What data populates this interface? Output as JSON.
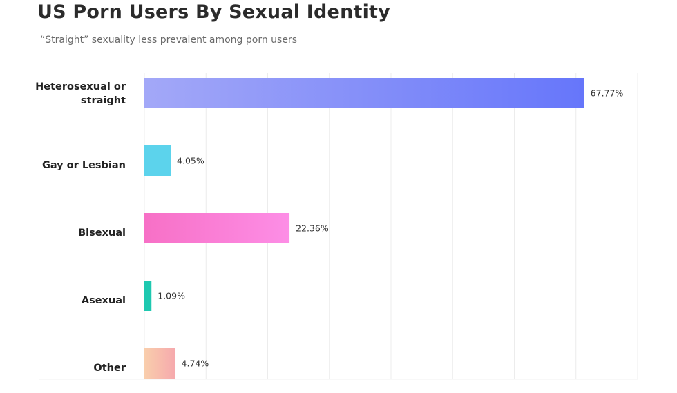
{
  "chart_data": {
    "type": "bar",
    "orientation": "horizontal",
    "title": "US Porn Users By Sexual Identity",
    "subtitle": "“Straight” sexuality less prevalent among porn users",
    "categories": [
      [
        "Heterosexual or",
        "straight"
      ],
      [
        "Gay or Lesbian"
      ],
      [
        "Bisexual"
      ],
      [
        "Asexual"
      ],
      [
        "Other"
      ]
    ],
    "values": [
      67.77,
      4.05,
      22.36,
      1.09,
      4.74
    ],
    "value_labels": [
      "67.77%",
      "4.05%",
      "22.36%",
      "1.09%",
      "4.74%"
    ],
    "xlim": [
      0,
      76
    ],
    "grid": true,
    "legend": "none",
    "colors": [
      [
        "#a3a8f8",
        "#6676fa"
      ],
      [
        "#5cd3ec",
        "#5cd3ec"
      ],
      [
        "#f770c6",
        "#fd8ee6"
      ],
      [
        "#1ec8b0",
        "#1ec8b0"
      ],
      [
        "#f9ceac",
        "#f6a9ad"
      ]
    ]
  }
}
